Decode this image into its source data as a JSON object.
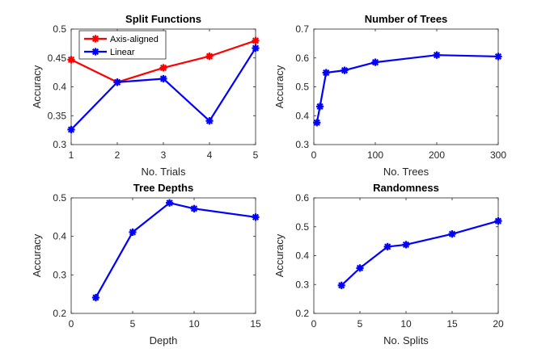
{
  "chart_data": [
    {
      "type": "line",
      "title": "Split Functions",
      "xlabel": "No. Trials",
      "ylabel": "Accuracy",
      "xlim": [
        1,
        5
      ],
      "ylim": [
        0.3,
        0.5
      ],
      "xticks": [
        "1",
        "2",
        "3",
        "4",
        "5"
      ],
      "yticks": [
        "0.3",
        "0.35",
        "0.4",
        "0.45",
        "0.5"
      ],
      "grid": false,
      "legend": "top-left",
      "x": [
        1,
        2,
        3,
        4,
        5
      ],
      "series": [
        {
          "name": "Axis-aligned",
          "color": "#ff0000",
          "values": [
            0.447,
            0.408,
            0.433,
            0.453,
            0.48
          ]
        },
        {
          "name": "Linear",
          "color": "#0000ff",
          "values": [
            0.326,
            0.408,
            0.414,
            0.341,
            0.467
          ]
        }
      ]
    },
    {
      "type": "line",
      "title": "Number of Trees",
      "xlabel": "No. Trees",
      "ylabel": "Accuracy",
      "xlim": [
        0,
        300
      ],
      "ylim": [
        0.3,
        0.7
      ],
      "xticks": [
        "0",
        "100",
        "200",
        "300"
      ],
      "yticks": [
        "0.3",
        "0.4",
        "0.5",
        "0.6",
        "0.7"
      ],
      "grid": false,
      "series": [
        {
          "color": "#0000ff",
          "x": [
            5,
            10,
            20,
            50,
            100,
            200,
            300
          ],
          "values": [
            0.376,
            0.432,
            0.549,
            0.557,
            0.585,
            0.61,
            0.605
          ]
        }
      ]
    },
    {
      "type": "line",
      "title": "Tree Depths",
      "xlabel": "Depth",
      "ylabel": "Accuracy",
      "xlim": [
        0,
        15
      ],
      "ylim": [
        0.2,
        0.5
      ],
      "xticks": [
        "0",
        "5",
        "10",
        "15"
      ],
      "yticks": [
        "0.2",
        "0.3",
        "0.4",
        "0.5"
      ],
      "grid": false,
      "series": [
        {
          "color": "#0000ff",
          "x": [
            2,
            5,
            8,
            10,
            15
          ],
          "values": [
            0.241,
            0.411,
            0.487,
            0.472,
            0.45
          ]
        }
      ]
    },
    {
      "type": "line",
      "title": "Randomness",
      "xlabel": "No. Splits",
      "ylabel": "Accuracy",
      "xlim": [
        0,
        20
      ],
      "ylim": [
        0.2,
        0.6
      ],
      "xticks": [
        "0",
        "5",
        "10",
        "15",
        "20"
      ],
      "yticks": [
        "0.2",
        "0.3",
        "0.4",
        "0.5",
        "0.6"
      ],
      "grid": false,
      "series": [
        {
          "color": "#0000ff",
          "x": [
            3,
            5,
            8,
            10,
            15,
            20
          ],
          "values": [
            0.297,
            0.357,
            0.431,
            0.438,
            0.475,
            0.52
          ]
        }
      ]
    }
  ]
}
